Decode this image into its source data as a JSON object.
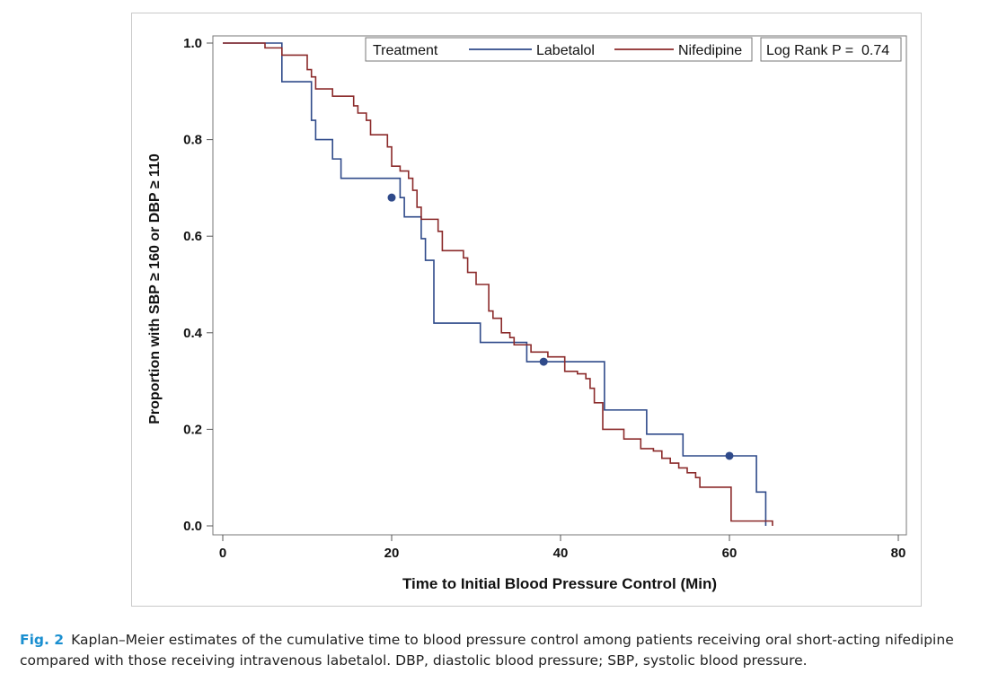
{
  "chart_data": {
    "type": "line",
    "subtype": "kaplan-meier step",
    "xlabel": "Time to Initial Blood Pressure Control (Min)",
    "ylabel": "Proportion with SBP ≥ 160 or DBP ≥ 110",
    "xlim": [
      0,
      80
    ],
    "ylim": [
      0,
      1
    ],
    "xticks": [
      0,
      20,
      40,
      60,
      80
    ],
    "yticks": [
      0.0,
      0.2,
      0.4,
      0.6,
      0.8,
      1.0
    ],
    "ytick_labels": [
      "0.0",
      "0.2",
      "0.4",
      "0.6",
      "0.8",
      "1.0"
    ],
    "grid": false,
    "legend": {
      "position": "top-right",
      "title": "Treatment",
      "entries": [
        "Labetalol",
        "Nifedipine"
      ],
      "stat_text": "Log Rank P =  0.74"
    },
    "series": [
      {
        "name": "Labetalol",
        "color": "#2f4a8a",
        "steps": [
          [
            0,
            1.0
          ],
          [
            7,
            0.92
          ],
          [
            10.5,
            0.84
          ],
          [
            11,
            0.8
          ],
          [
            13,
            0.76
          ],
          [
            14,
            0.72
          ],
          [
            20,
            0.72
          ],
          [
            21,
            0.68
          ],
          [
            21.5,
            0.64
          ],
          [
            23,
            0.64
          ],
          [
            23.5,
            0.595
          ],
          [
            24,
            0.55
          ],
          [
            25,
            0.42
          ],
          [
            30,
            0.42
          ],
          [
            30.5,
            0.38
          ],
          [
            34,
            0.38
          ],
          [
            35,
            0.38
          ],
          [
            36,
            0.34
          ],
          [
            45,
            0.34
          ],
          [
            45.2,
            0.24
          ],
          [
            50,
            0.24
          ],
          [
            50.2,
            0.19
          ],
          [
            54,
            0.19
          ],
          [
            54.5,
            0.145
          ],
          [
            63,
            0.145
          ],
          [
            63.2,
            0.07
          ],
          [
            64.2,
            0.07
          ],
          [
            64.3,
            0.0
          ]
        ],
        "censored": [
          [
            20,
            0.68
          ],
          [
            38,
            0.34
          ],
          [
            60,
            0.145
          ]
        ]
      },
      {
        "name": "Nifedipine",
        "color": "#8b2a2a",
        "steps": [
          [
            0,
            1.0
          ],
          [
            5,
            0.99
          ],
          [
            7,
            0.975
          ],
          [
            10,
            0.945
          ],
          [
            10.5,
            0.93
          ],
          [
            11,
            0.905
          ],
          [
            12,
            0.905
          ],
          [
            13,
            0.89
          ],
          [
            15,
            0.89
          ],
          [
            15.5,
            0.87
          ],
          [
            16,
            0.855
          ],
          [
            17,
            0.84
          ],
          [
            17.5,
            0.81
          ],
          [
            19,
            0.81
          ],
          [
            19.5,
            0.785
          ],
          [
            20,
            0.745
          ],
          [
            21,
            0.735
          ],
          [
            22,
            0.72
          ],
          [
            22.5,
            0.695
          ],
          [
            23,
            0.66
          ],
          [
            23.5,
            0.635
          ],
          [
            25,
            0.635
          ],
          [
            25.5,
            0.61
          ],
          [
            26,
            0.57
          ],
          [
            28,
            0.57
          ],
          [
            28.5,
            0.555
          ],
          [
            29,
            0.525
          ],
          [
            30,
            0.5
          ],
          [
            31,
            0.5
          ],
          [
            31.5,
            0.445
          ],
          [
            32,
            0.43
          ],
          [
            33,
            0.4
          ],
          [
            34,
            0.39
          ],
          [
            34.5,
            0.375
          ],
          [
            36,
            0.375
          ],
          [
            36.5,
            0.36
          ],
          [
            38,
            0.36
          ],
          [
            38.5,
            0.35
          ],
          [
            40,
            0.35
          ],
          [
            40.5,
            0.32
          ],
          [
            42,
            0.315
          ],
          [
            43,
            0.305
          ],
          [
            43.5,
            0.285
          ],
          [
            44,
            0.255
          ],
          [
            45,
            0.2
          ],
          [
            47,
            0.2
          ],
          [
            47.5,
            0.18
          ],
          [
            49,
            0.18
          ],
          [
            49.5,
            0.16
          ],
          [
            51,
            0.155
          ],
          [
            52,
            0.14
          ],
          [
            53,
            0.13
          ],
          [
            54,
            0.12
          ],
          [
            55,
            0.11
          ],
          [
            56,
            0.1
          ],
          [
            56.5,
            0.08
          ],
          [
            60,
            0.08
          ],
          [
            60.2,
            0.01
          ],
          [
            65,
            0.01
          ],
          [
            65.1,
            0.0
          ]
        ],
        "censored": []
      }
    ]
  },
  "caption": {
    "label": "Fig. 2",
    "text": "Kaplan–Meier estimates of the cumulative time to blood pressure control among patients receiving oral short-acting nifedipine compared with those receiving intravenous labetalol. DBP, diastolic blood pressure; SBP, systolic blood pressure."
  }
}
